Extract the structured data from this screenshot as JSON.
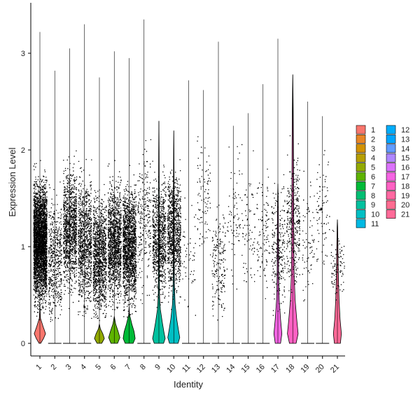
{
  "chart_data": {
    "type": "violin",
    "xlabel": "Identity",
    "ylabel": "Expression Level",
    "ylim": [
      -0.15,
      3.5
    ],
    "yticks": [
      0,
      1,
      2,
      3
    ],
    "grid": false,
    "legend_position": "right",
    "categories": [
      "1",
      "2",
      "3",
      "4",
      "5",
      "6",
      "7",
      "8",
      "9",
      "10",
      "11",
      "12",
      "13",
      "14",
      "15",
      "16",
      "17",
      "18",
      "19",
      "20",
      "21"
    ],
    "colors": [
      "#F8766D",
      "#E88526",
      "#D39200",
      "#B79F00",
      "#93AA00",
      "#5EB300",
      "#00BA38",
      "#00BF74",
      "#00C19F",
      "#00BFC4",
      "#00B9E3",
      "#00ADFA",
      "#00A5FF",
      "#619CFF",
      "#AE87FF",
      "#DB72FB",
      "#F564E3",
      "#FF61C3",
      "#FF68A1",
      "#FF6C91",
      "#FF6A98"
    ],
    "violins": [
      {
        "category": "1",
        "max": 3.22,
        "shape": [
          [
            0,
            0.12
          ],
          [
            0.05,
            0.55
          ],
          [
            0.1,
            0.85
          ],
          [
            0.18,
            0.45
          ],
          [
            0.26,
            0.08
          ],
          [
            0.4,
            0
          ]
        ]
      },
      {
        "category": "2",
        "max": 2.82,
        "shape": []
      },
      {
        "category": "3",
        "max": 3.05,
        "shape": []
      },
      {
        "category": "4",
        "max": 3.3,
        "shape": []
      },
      {
        "category": "5",
        "max": 2.75,
        "shape": [
          [
            0,
            0.35
          ],
          [
            0.05,
            0.75
          ],
          [
            0.1,
            0.5
          ],
          [
            0.15,
            0.15
          ],
          [
            0.2,
            0
          ]
        ]
      },
      {
        "category": "6",
        "max": 3.02,
        "shape": [
          [
            0,
            0.5
          ],
          [
            0.06,
            0.85
          ],
          [
            0.13,
            0.55
          ],
          [
            0.2,
            0.2
          ],
          [
            0.28,
            0
          ]
        ]
      },
      {
        "category": "7",
        "max": 2.95,
        "shape": [
          [
            0,
            0.6
          ],
          [
            0.05,
            0.9
          ],
          [
            0.12,
            0.75
          ],
          [
            0.2,
            0.4
          ],
          [
            0.3,
            0.05
          ],
          [
            0.38,
            0
          ]
        ]
      },
      {
        "category": "8",
        "max": 3.35,
        "shape": []
      },
      {
        "category": "9",
        "max": 2.3,
        "shape": [
          [
            0,
            0.7
          ],
          [
            0.05,
            0.95
          ],
          [
            0.12,
            0.75
          ],
          [
            0.22,
            0.5
          ],
          [
            0.35,
            0.22
          ],
          [
            0.5,
            0.1
          ],
          [
            0.8,
            0.06
          ],
          [
            1.2,
            0.05
          ],
          [
            1.6,
            0.05
          ],
          [
            2.0,
            0.03
          ],
          [
            2.3,
            0
          ]
        ]
      },
      {
        "category": "10",
        "max": 2.2,
        "shape": [
          [
            0,
            0.65
          ],
          [
            0.06,
            0.9
          ],
          [
            0.14,
            0.7
          ],
          [
            0.25,
            0.45
          ],
          [
            0.4,
            0.2
          ],
          [
            0.6,
            0.1
          ],
          [
            0.9,
            0.07
          ],
          [
            1.3,
            0.06
          ],
          [
            1.7,
            0.05
          ],
          [
            2.0,
            0.03
          ],
          [
            2.2,
            0
          ]
        ]
      },
      {
        "category": "11",
        "max": 2.72,
        "shape": []
      },
      {
        "category": "12",
        "max": 2.62,
        "shape": []
      },
      {
        "category": "13",
        "max": 3.12,
        "shape": []
      },
      {
        "category": "14",
        "max": 2.25,
        "shape": []
      },
      {
        "category": "15",
        "max": 2.38,
        "shape": []
      },
      {
        "category": "16",
        "max": 2.68,
        "shape": []
      },
      {
        "category": "17",
        "max": 3.15,
        "shape": [
          [
            0,
            0.4
          ],
          [
            0.1,
            0.6
          ],
          [
            0.25,
            0.4
          ],
          [
            0.45,
            0.2
          ],
          [
            0.7,
            0.12
          ],
          [
            1.0,
            0.09
          ],
          [
            1.3,
            0.07
          ],
          [
            1.55,
            0.03
          ],
          [
            1.65,
            0
          ]
        ]
      },
      {
        "category": "18",
        "max": 2.78,
        "shape": [
          [
            0,
            0.5
          ],
          [
            0.1,
            0.8
          ],
          [
            0.25,
            0.6
          ],
          [
            0.45,
            0.35
          ],
          [
            0.7,
            0.22
          ],
          [
            1.0,
            0.16
          ],
          [
            1.4,
            0.14
          ],
          [
            1.8,
            0.12
          ],
          [
            2.1,
            0.1
          ],
          [
            2.4,
            0.07
          ],
          [
            2.6,
            0.04
          ],
          [
            2.78,
            0
          ]
        ]
      },
      {
        "category": "19",
        "max": 2.5,
        "shape": []
      },
      {
        "category": "20",
        "max": 2.35,
        "shape": []
      },
      {
        "category": "21",
        "max": 1.28,
        "shape": [
          [
            0,
            0.45
          ],
          [
            0.1,
            0.6
          ],
          [
            0.25,
            0.4
          ],
          [
            0.45,
            0.25
          ],
          [
            0.7,
            0.15
          ],
          [
            1.0,
            0.08
          ],
          [
            1.2,
            0.04
          ],
          [
            1.28,
            0
          ]
        ]
      }
    ],
    "point_counts": [
      3500,
      500,
      1100,
      1000,
      1200,
      1300,
      1600,
      230,
      850,
      900,
      50,
      90,
      190,
      70,
      75,
      100,
      230,
      330,
      70,
      80,
      90
    ]
  }
}
